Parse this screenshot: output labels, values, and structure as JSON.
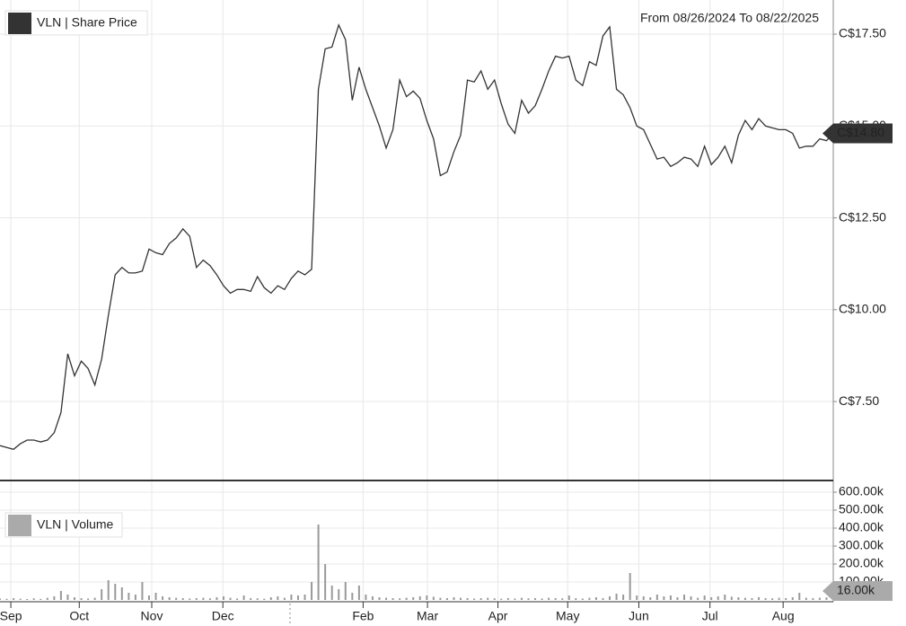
{
  "header": "From 08/26/2024 To 08/22/2025",
  "chart_data": [
    {
      "type": "line",
      "legend": "VLN | Share Price",
      "series": [
        {
          "name": "VLN | Share Price",
          "color": "#333333",
          "values": [
            6.3,
            6.25,
            6.2,
            6.35,
            6.45,
            6.45,
            6.4,
            6.45,
            6.65,
            7.2,
            8.8,
            8.2,
            8.6,
            8.4,
            7.95,
            8.65,
            9.85,
            10.95,
            11.15,
            11.0,
            11.0,
            11.05,
            11.65,
            11.55,
            11.5,
            11.8,
            11.95,
            12.2,
            12.0,
            11.15,
            11.35,
            11.2,
            10.95,
            10.65,
            10.45,
            10.55,
            10.55,
            10.5,
            10.9,
            10.6,
            10.45,
            10.65,
            10.55,
            10.85,
            11.05,
            10.95,
            11.1,
            16.0,
            17.1,
            17.15,
            17.75,
            17.35,
            15.7,
            16.6,
            16.0,
            15.5,
            15.0,
            14.4,
            14.9,
            16.25,
            15.8,
            15.95,
            15.75,
            15.15,
            14.65,
            13.65,
            13.75,
            14.3,
            14.75,
            16.25,
            16.2,
            16.5,
            16.0,
            16.25,
            15.6,
            15.05,
            14.8,
            15.7,
            15.35,
            15.55,
            16.0,
            16.5,
            16.9,
            16.85,
            16.9,
            16.25,
            16.1,
            16.75,
            16.65,
            17.45,
            17.7,
            16.0,
            15.85,
            15.5,
            15.0,
            14.9,
            14.5,
            14.1,
            14.15,
            13.9,
            14.0,
            14.15,
            14.1,
            13.9,
            14.45,
            13.95,
            14.15,
            14.45,
            14.0,
            14.75,
            15.15,
            14.9,
            15.2,
            15.0,
            14.95,
            14.9,
            14.9,
            14.8,
            14.4,
            14.45,
            14.45,
            14.65,
            14.6,
            14.8
          ]
        }
      ],
      "xlim": [
        0,
        123
      ],
      "xticks": [
        {
          "value": 1.6,
          "label": "Sep"
        },
        {
          "value": 11.7,
          "label": "Oct"
        },
        {
          "value": 22.4,
          "label": "Nov"
        },
        {
          "value": 32.9,
          "label": "Dec"
        },
        {
          "value": 53.6,
          "label": "Feb"
        },
        {
          "value": 63.1,
          "label": "Mar"
        },
        {
          "value": 73.5,
          "label": "Apr"
        },
        {
          "value": 83.8,
          "label": "May"
        },
        {
          "value": 94.3,
          "label": "Jun"
        },
        {
          "value": 104.8,
          "label": "Jul"
        },
        {
          "value": 115.6,
          "label": "Aug"
        }
      ],
      "ylim": [
        5.35,
        18.43
      ],
      "yticks": [
        {
          "value": 7.5,
          "label": "C$7.50"
        },
        {
          "value": 10,
          "label": "C$10.00"
        },
        {
          "value": 12.5,
          "label": "C$12.50"
        },
        {
          "value": 15,
          "label": "C$15.00"
        },
        {
          "value": 17.5,
          "label": "C$17.50"
        }
      ],
      "current": {
        "value": 14.8,
        "label": "C$14.80"
      },
      "grid": true
    },
    {
      "type": "bar",
      "legend": "VLN | Volume",
      "series": [
        {
          "name": "VLN | Volume",
          "color": "#999999",
          "values": [
            8000,
            6000,
            10000,
            7000,
            5000,
            9000,
            6000,
            12000,
            20000,
            50000,
            30000,
            15000,
            10000,
            8000,
            12000,
            60000,
            110000,
            90000,
            70000,
            40000,
            30000,
            100000,
            25000,
            40000,
            20000,
            15000,
            12000,
            10000,
            8000,
            10000,
            12000,
            9000,
            15000,
            20000,
            12000,
            8000,
            25000,
            10000,
            9000,
            7000,
            15000,
            20000,
            12000,
            30000,
            25000,
            30000,
            100000,
            420000,
            200000,
            80000,
            60000,
            100000,
            40000,
            80000,
            30000,
            20000,
            15000,
            12000,
            10000,
            9000,
            12000,
            15000,
            20000,
            25000,
            18000,
            12000,
            10000,
            15000,
            12000,
            10000,
            8000,
            10000,
            12000,
            9000,
            7000,
            10000,
            8000,
            12000,
            9000,
            10000,
            8000,
            12000,
            10000,
            9000,
            25000,
            10000,
            8000,
            12000,
            15000,
            10000,
            20000,
            35000,
            30000,
            150000,
            25000,
            20000,
            15000,
            30000,
            20000,
            25000,
            15000,
            30000,
            20000,
            12000,
            25000,
            15000,
            20000,
            30000,
            18000,
            15000,
            12000,
            10000,
            15000,
            10000,
            9000,
            12000,
            10000,
            15000,
            40000,
            12000,
            10000,
            12000,
            14000,
            16000
          ]
        }
      ],
      "ylim": [
        0,
        655000
      ],
      "yticks": [
        {
          "value": 100000,
          "label": "100.00k"
        },
        {
          "value": 200000,
          "label": "200.00k"
        },
        {
          "value": 300000,
          "label": "300.00k"
        },
        {
          "value": 400000,
          "label": "400.00k"
        },
        {
          "value": 500000,
          "label": "500.00k"
        },
        {
          "value": 600000,
          "label": "600.00k"
        }
      ],
      "current": {
        "value": 16000,
        "label": "16.00k"
      },
      "grid": true
    }
  ]
}
